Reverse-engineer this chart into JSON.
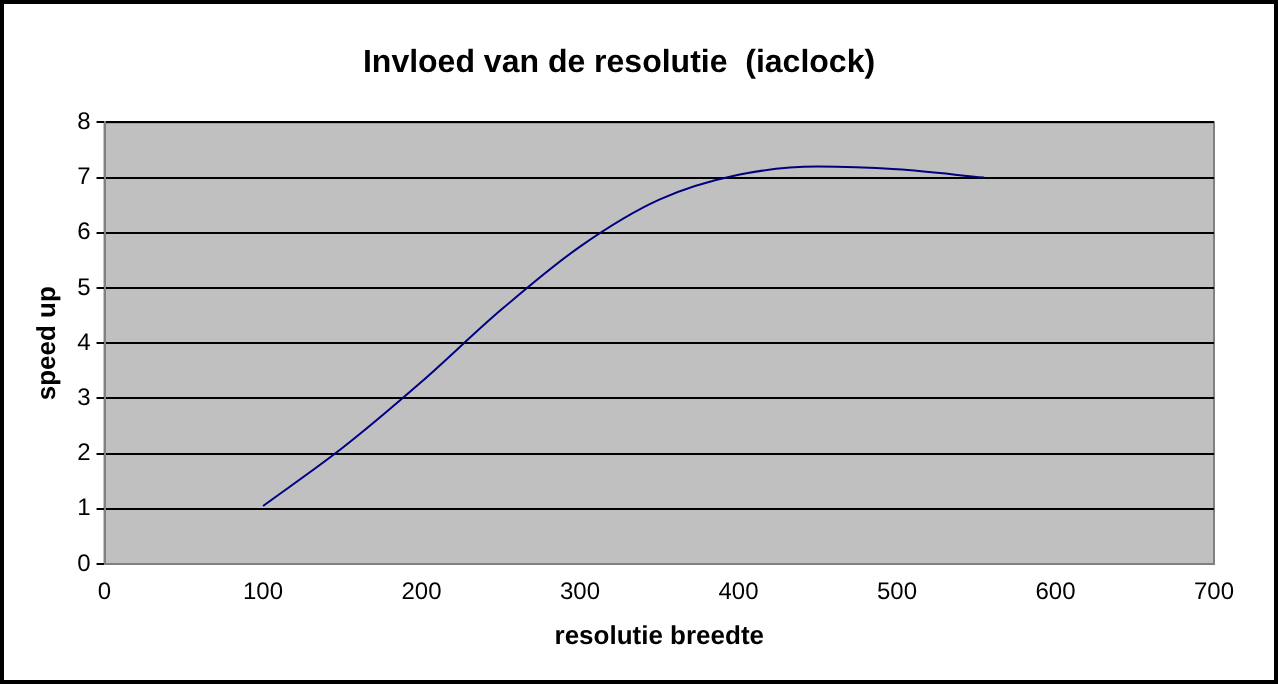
{
  "chart_data": {
    "type": "line",
    "title": "Invloed van de resolutie  (iaclock)",
    "xlabel": "resolutie breedte",
    "ylabel": "speed up",
    "x": [
      100,
      150,
      200,
      250,
      300,
      350,
      400,
      450,
      500,
      555
    ],
    "series": [
      {
        "color": "#000080",
        "values": [
          1.05,
          2.1,
          3.3,
          4.6,
          5.75,
          6.6,
          7.05,
          7.2,
          7.15,
          7.0
        ]
      }
    ],
    "xlim": [
      0,
      700
    ],
    "xticks": [
      0,
      100,
      200,
      300,
      400,
      500,
      600,
      700
    ],
    "ylim": [
      0,
      8
    ],
    "yticks": [
      0,
      1,
      2,
      3,
      4,
      5,
      6,
      7,
      8
    ],
    "grid": "y",
    "legend": false,
    "marker": "none",
    "line_style": "solid"
  }
}
